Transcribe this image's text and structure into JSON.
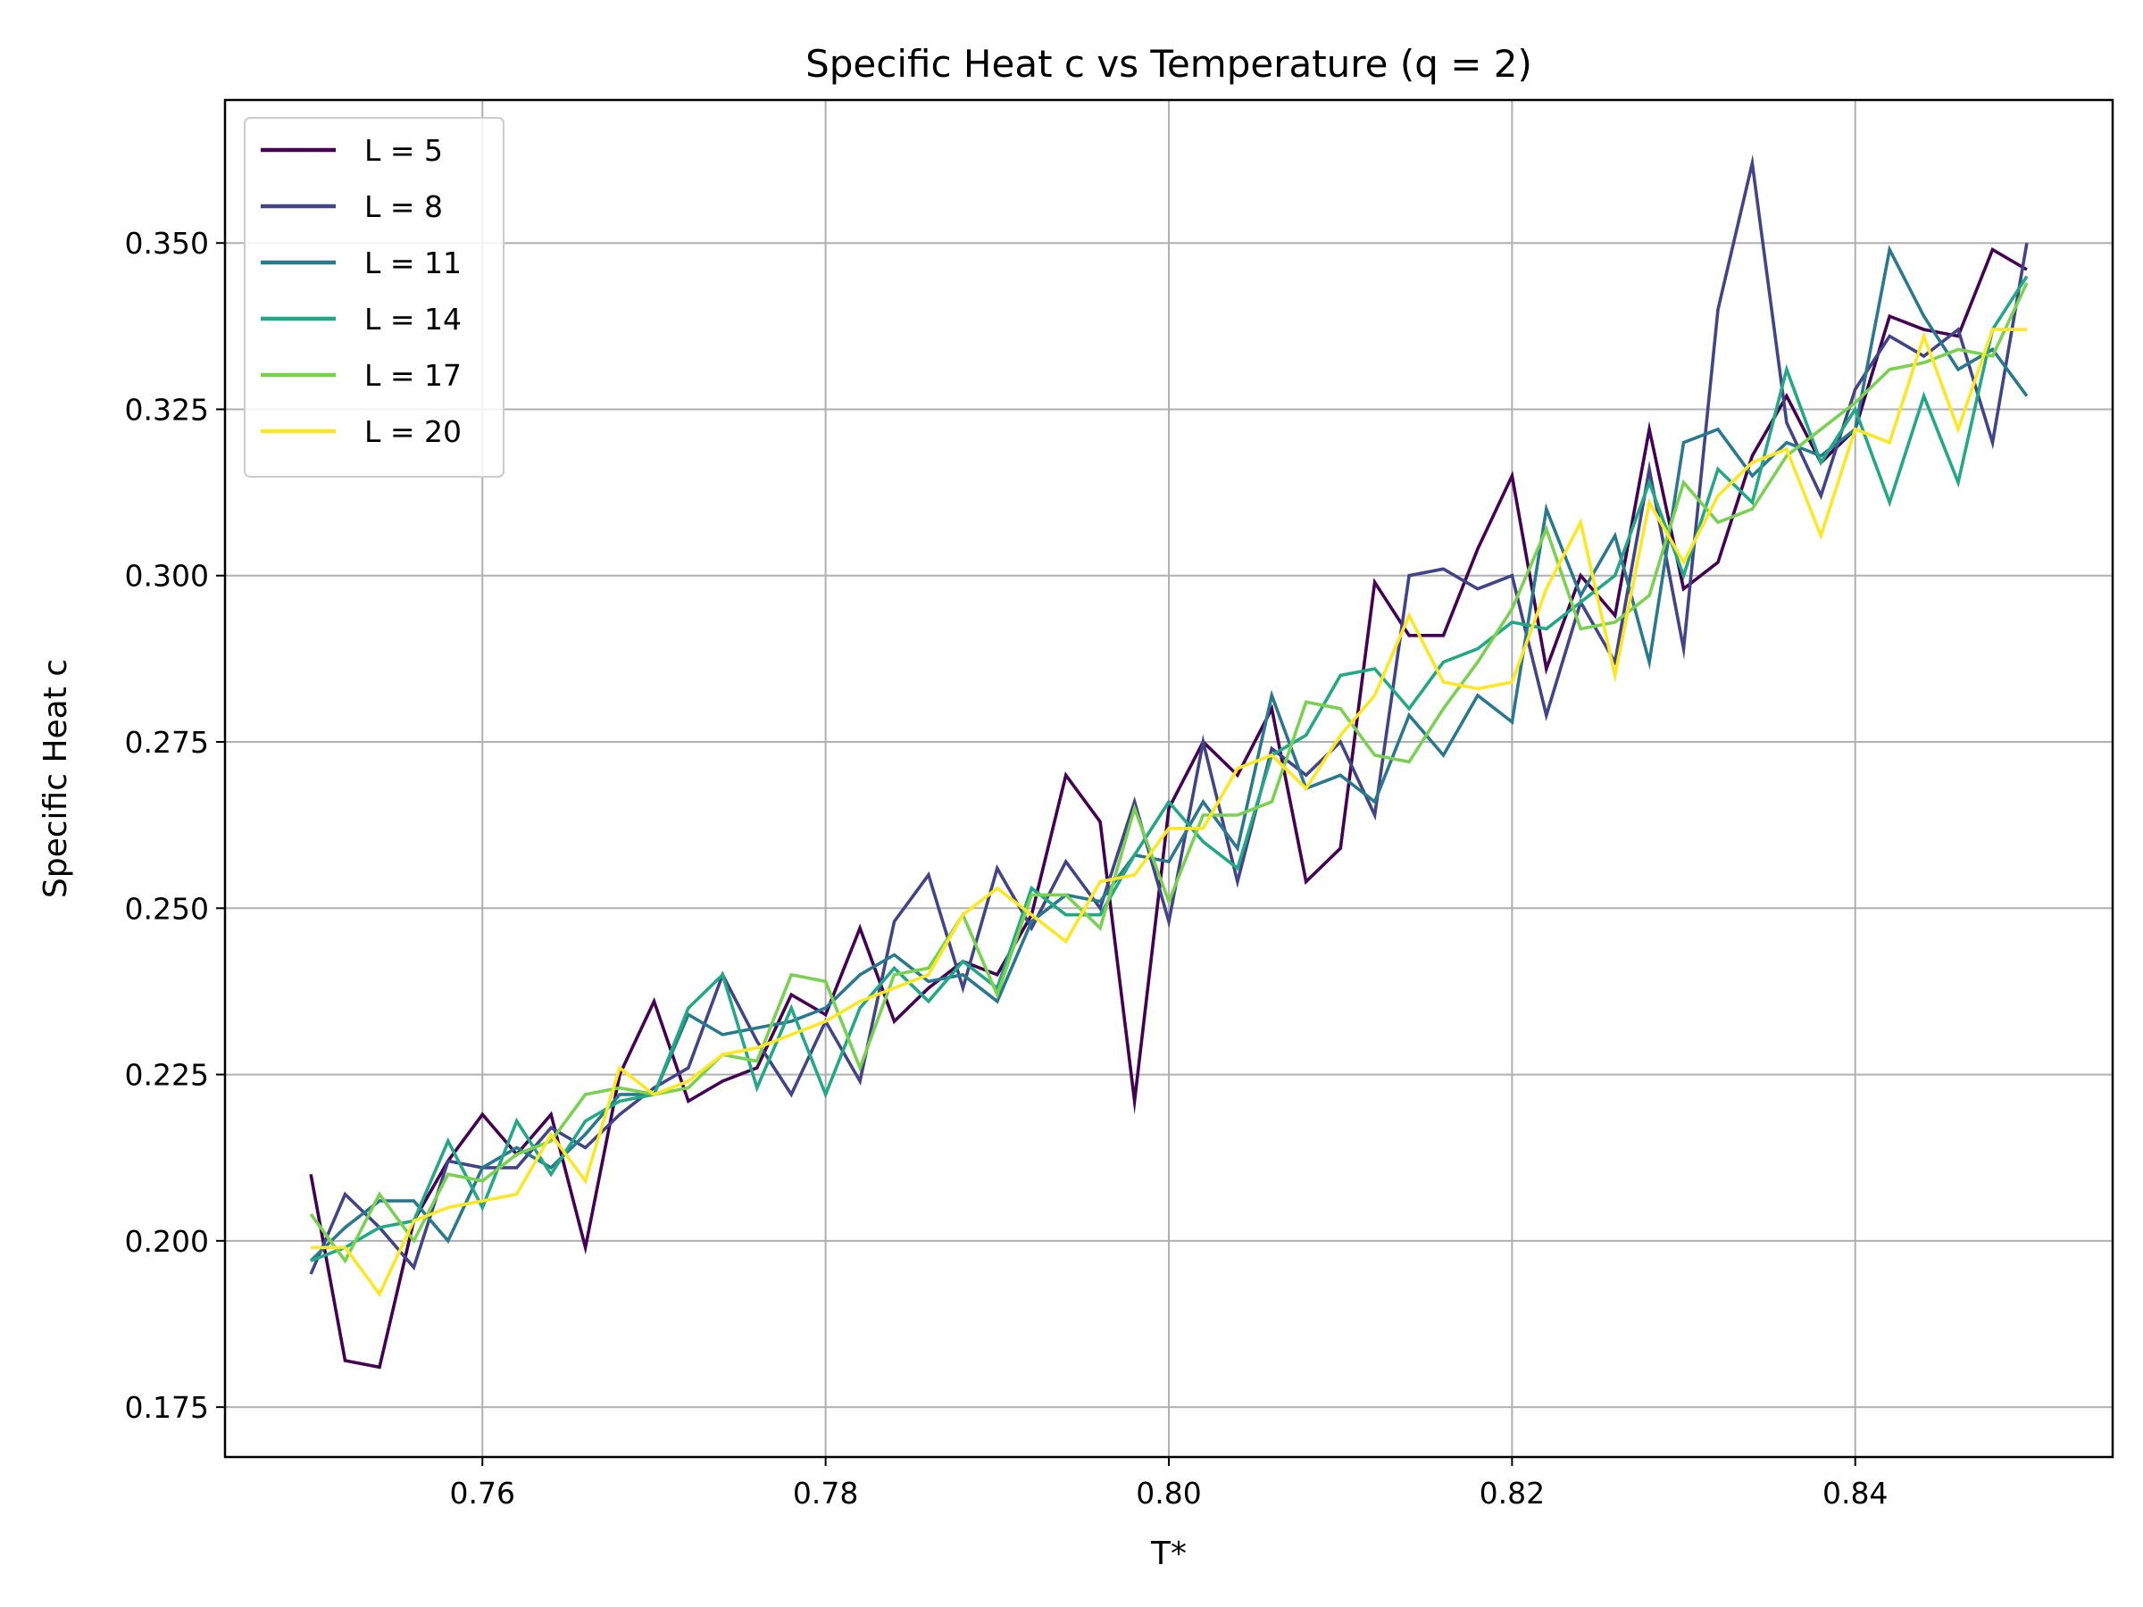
{
  "chart_data": {
    "type": "line",
    "title": "Specific Heat c vs Temperature (q = 2)",
    "xlabel": "T*",
    "ylabel": "Specific Heat c",
    "xlim": [
      0.745,
      0.855
    ],
    "ylim": [
      0.1675,
      0.3715
    ],
    "xticks": [
      0.76,
      0.78,
      0.8,
      0.82,
      0.84
    ],
    "xtick_labels": [
      "0.76",
      "0.78",
      "0.80",
      "0.82",
      "0.84"
    ],
    "yticks": [
      0.175,
      0.2,
      0.225,
      0.25,
      0.275,
      0.3,
      0.325,
      0.35
    ],
    "ytick_labels": [
      "0.175",
      "0.200",
      "0.225",
      "0.250",
      "0.275",
      "0.300",
      "0.325",
      "0.350"
    ],
    "grid": true,
    "legend_position": "top-left",
    "x": [
      0.75,
      0.752,
      0.754,
      0.756,
      0.758,
      0.76,
      0.762,
      0.764,
      0.766,
      0.768,
      0.77,
      0.772,
      0.774,
      0.776,
      0.778,
      0.78,
      0.782,
      0.784,
      0.786,
      0.788,
      0.79,
      0.792,
      0.794,
      0.796,
      0.798,
      0.8,
      0.802,
      0.804,
      0.806,
      0.808,
      0.81,
      0.812,
      0.814,
      0.816,
      0.818,
      0.82,
      0.822,
      0.824,
      0.826,
      0.828,
      0.83,
      0.832,
      0.834,
      0.836,
      0.838,
      0.84,
      0.842,
      0.844,
      0.846,
      0.848,
      0.85
    ],
    "series": [
      {
        "name": "L = 5",
        "color": "#440154",
        "values": [
          0.21,
          0.182,
          0.181,
          0.203,
          0.212,
          0.219,
          0.213,
          0.219,
          0.199,
          0.225,
          0.236,
          0.221,
          0.224,
          0.226,
          0.237,
          0.234,
          0.247,
          0.233,
          0.238,
          0.242,
          0.24,
          0.249,
          0.27,
          0.263,
          0.221,
          0.265,
          0.275,
          0.27,
          0.28,
          0.254,
          0.259,
          0.299,
          0.291,
          0.291,
          0.304,
          0.315,
          0.286,
          0.3,
          0.294,
          0.322,
          0.298,
          0.302,
          0.318,
          0.327,
          0.317,
          0.322,
          0.339,
          0.337,
          0.336,
          0.349,
          0.346
        ]
      },
      {
        "name": "L = 8",
        "color": "#414487",
        "values": [
          0.195,
          0.207,
          0.202,
          0.196,
          0.212,
          0.211,
          0.211,
          0.217,
          0.214,
          0.219,
          0.223,
          0.226,
          0.24,
          0.23,
          0.222,
          0.233,
          0.224,
          0.248,
          0.255,
          0.238,
          0.256,
          0.247,
          0.257,
          0.25,
          0.266,
          0.248,
          0.275,
          0.254,
          0.274,
          0.27,
          0.275,
          0.264,
          0.3,
          0.301,
          0.298,
          0.3,
          0.279,
          0.296,
          0.287,
          0.316,
          0.289,
          0.34,
          0.362,
          0.323,
          0.312,
          0.328,
          0.336,
          0.333,
          0.337,
          0.32,
          0.35
        ]
      },
      {
        "name": "L = 11",
        "color": "#2a788e",
        "values": [
          0.197,
          0.202,
          0.206,
          0.206,
          0.2,
          0.211,
          0.214,
          0.211,
          0.216,
          0.222,
          0.222,
          0.234,
          0.231,
          0.232,
          0.233,
          0.235,
          0.24,
          0.243,
          0.239,
          0.24,
          0.236,
          0.248,
          0.252,
          0.251,
          0.258,
          0.257,
          0.266,
          0.259,
          0.282,
          0.268,
          0.27,
          0.266,
          0.279,
          0.273,
          0.282,
          0.278,
          0.31,
          0.297,
          0.306,
          0.287,
          0.32,
          0.322,
          0.315,
          0.32,
          0.318,
          0.322,
          0.349,
          0.339,
          0.331,
          0.334,
          0.327
        ]
      },
      {
        "name": "L = 14",
        "color": "#22a884",
        "values": [
          0.197,
          0.199,
          0.202,
          0.203,
          0.215,
          0.205,
          0.218,
          0.21,
          0.218,
          0.221,
          0.222,
          0.235,
          0.24,
          0.223,
          0.235,
          0.222,
          0.235,
          0.241,
          0.236,
          0.242,
          0.238,
          0.253,
          0.249,
          0.249,
          0.258,
          0.266,
          0.26,
          0.256,
          0.273,
          0.276,
          0.285,
          0.286,
          0.28,
          0.287,
          0.289,
          0.293,
          0.292,
          0.296,
          0.3,
          0.314,
          0.3,
          0.316,
          0.311,
          0.331,
          0.317,
          0.325,
          0.311,
          0.327,
          0.314,
          0.337,
          0.345
        ]
      },
      {
        "name": "L = 17",
        "color": "#7ad151",
        "values": [
          0.204,
          0.197,
          0.207,
          0.2,
          0.21,
          0.209,
          0.213,
          0.215,
          0.222,
          0.223,
          0.222,
          0.223,
          0.228,
          0.227,
          0.24,
          0.239,
          0.226,
          0.24,
          0.241,
          0.249,
          0.237,
          0.252,
          0.252,
          0.247,
          0.265,
          0.251,
          0.264,
          0.264,
          0.266,
          0.281,
          0.28,
          0.273,
          0.272,
          0.28,
          0.287,
          0.295,
          0.307,
          0.292,
          0.293,
          0.297,
          0.314,
          0.308,
          0.31,
          0.318,
          0.322,
          0.326,
          0.331,
          0.332,
          0.334,
          0.333,
          0.344
        ]
      },
      {
        "name": "L = 20",
        "color": "#fde725",
        "values": [
          0.199,
          0.199,
          0.192,
          0.203,
          0.205,
          0.206,
          0.207,
          0.216,
          0.209,
          0.226,
          0.222,
          0.224,
          0.228,
          0.229,
          0.231,
          0.233,
          0.236,
          0.238,
          0.24,
          0.249,
          0.253,
          0.249,
          0.245,
          0.254,
          0.255,
          0.262,
          0.262,
          0.271,
          0.273,
          0.268,
          0.276,
          0.282,
          0.294,
          0.284,
          0.283,
          0.284,
          0.298,
          0.308,
          0.285,
          0.311,
          0.302,
          0.312,
          0.317,
          0.319,
          0.306,
          0.322,
          0.32,
          0.336,
          0.322,
          0.337,
          0.337
        ]
      }
    ]
  }
}
